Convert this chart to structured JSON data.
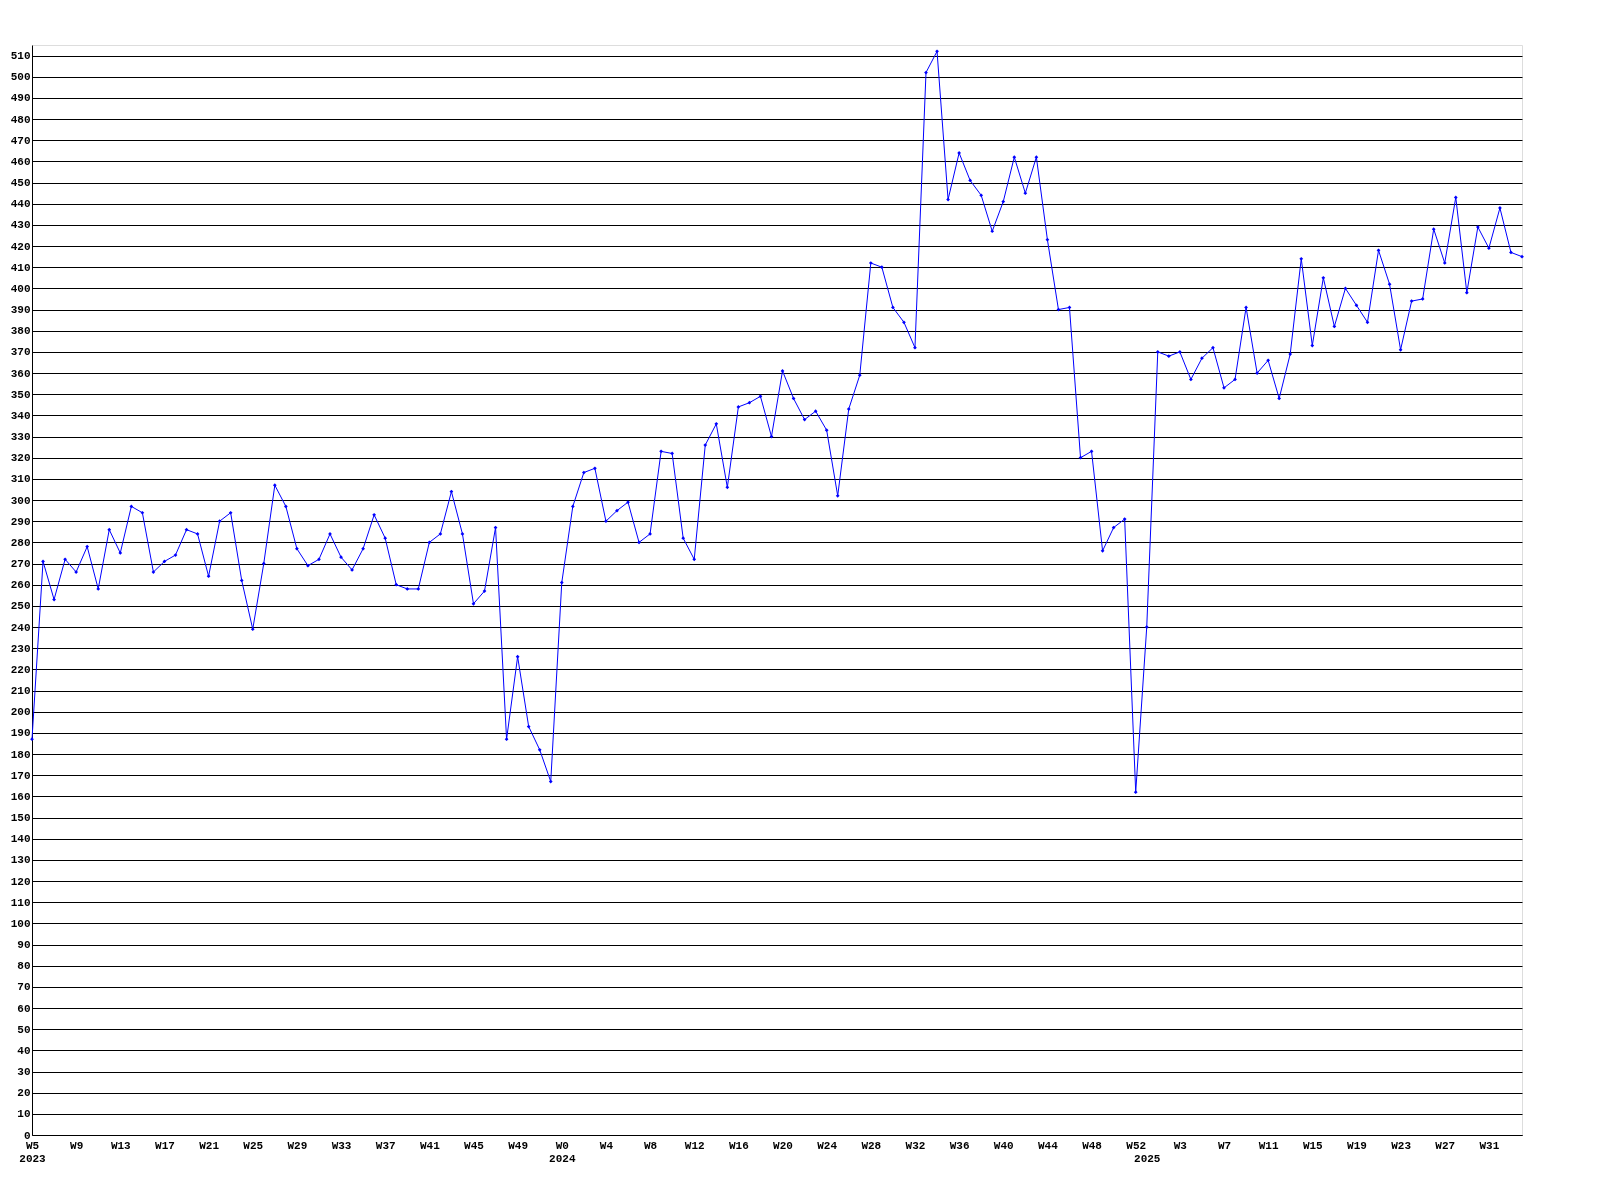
{
  "chart_data": {
    "type": "line",
    "categories": [
      "W5\n2023",
      null,
      null,
      null,
      "W9",
      null,
      null,
      null,
      "W13",
      null,
      null,
      null,
      "W17",
      null,
      null,
      null,
      "W21",
      null,
      null,
      null,
      "W25",
      null,
      null,
      null,
      "W29",
      null,
      null,
      null,
      "W33",
      null,
      null,
      null,
      "W37",
      null,
      null,
      null,
      "W41",
      null,
      null,
      null,
      "W45",
      null,
      null,
      null,
      "W49",
      null,
      null,
      null,
      "W0\n2024",
      null,
      null,
      null,
      "W4",
      null,
      null,
      null,
      "W8",
      null,
      null,
      null,
      "W12",
      null,
      null,
      null,
      "W16",
      null,
      null,
      null,
      "W20",
      null,
      null,
      null,
      "W24",
      null,
      null,
      null,
      "W28",
      null,
      null,
      null,
      "W32",
      null,
      null,
      null,
      "W36",
      null,
      null,
      null,
      "W40",
      null,
      null,
      null,
      "W44",
      null,
      null,
      null,
      "W48",
      null,
      null,
      null,
      "W52",
      "\n2025",
      null,
      null,
      "W3",
      null,
      null,
      null,
      "W7",
      null,
      null,
      null,
      "W11",
      null,
      null,
      null,
      "W15",
      null,
      null,
      null,
      "W19",
      null,
      null,
      null,
      "W23",
      null,
      null,
      null,
      "W27",
      null,
      null,
      null,
      "W31",
      null,
      null,
      null
    ],
    "series": [
      {
        "color": "#0000ff",
        "values": [
          187,
          271,
          253,
          272,
          266,
          278,
          258,
          286,
          275,
          297,
          294,
          266,
          271,
          274,
          286,
          284,
          264,
          290,
          294,
          262,
          239,
          270,
          307,
          297,
          277,
          269,
          272,
          284,
          273,
          267,
          277,
          293,
          282,
          260,
          258,
          258,
          280,
          284,
          304,
          284,
          251,
          257,
          287,
          187,
          226,
          193,
          182,
          167,
          261,
          297,
          313,
          315,
          290,
          295,
          299,
          280,
          284,
          323,
          322,
          282,
          272,
          326,
          336,
          306,
          344,
          346,
          349,
          330,
          361,
          348,
          338,
          342,
          333,
          302,
          343,
          359,
          412,
          410,
          391,
          384,
          372,
          502,
          512,
          442,
          464,
          451,
          444,
          427,
          441,
          462,
          445,
          462,
          423,
          390,
          391,
          320,
          323,
          276,
          287,
          291,
          162,
          240,
          370,
          368,
          370,
          357,
          367,
          372,
          353,
          357,
          391,
          360,
          366,
          348,
          369,
          414,
          373,
          405,
          382,
          400,
          392,
          384,
          418,
          402,
          371,
          394,
          395,
          428,
          412,
          443,
          398,
          429,
          419,
          438,
          417,
          415
        ]
      }
    ],
    "ylim": [
      0,
      515
    ],
    "yticks": [
      0,
      10,
      20,
      30,
      40,
      50,
      60,
      70,
      80,
      90,
      100,
      110,
      120,
      130,
      140,
      150,
      160,
      170,
      180,
      190,
      200,
      210,
      220,
      230,
      240,
      250,
      260,
      270,
      280,
      290,
      300,
      310,
      320,
      330,
      340,
      350,
      360,
      370,
      380,
      390,
      400,
      410,
      420,
      430,
      440,
      450,
      460,
      470,
      480,
      490,
      500,
      510
    ],
    "grid": "y",
    "marker": "diamond",
    "line_style": "solid"
  }
}
